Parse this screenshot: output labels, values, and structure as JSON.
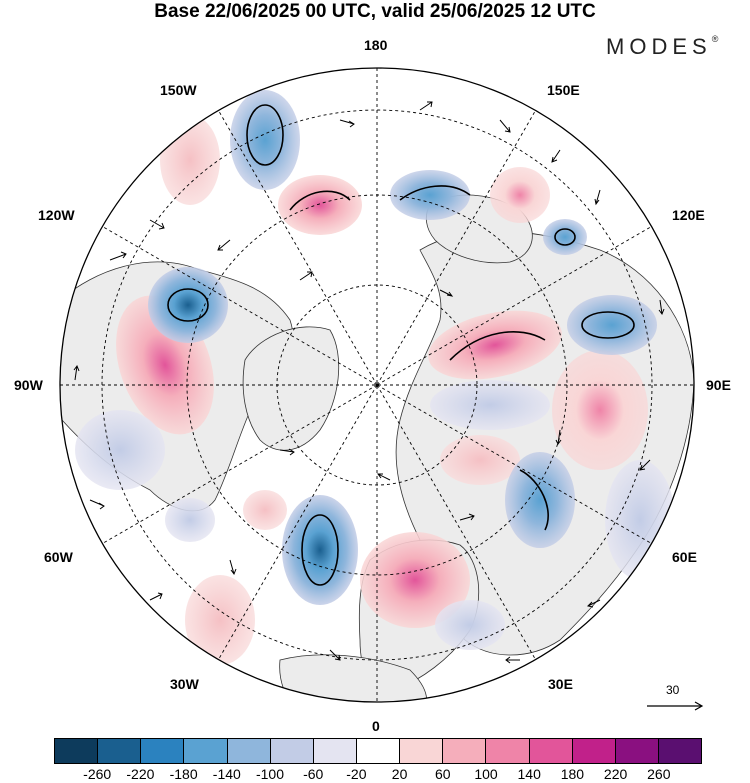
{
  "header": {
    "title": "Base 22/06/2025 00 UTC, valid 25/06/2025 12 UTC",
    "brand": "MODES",
    "brand_mark": "®"
  },
  "map": {
    "projection": "north-polar-stereographic",
    "longitude_labels": {
      "top": "180",
      "bottom": "0",
      "left": "90W",
      "right": "90E",
      "upper_left_1": "150W",
      "upper_left_2": "120W",
      "upper_right_1": "150E",
      "upper_right_2": "120E",
      "lower_left_1": "60W",
      "lower_left_2": "30W",
      "lower_right_1": "60E",
      "lower_right_2": "30E"
    },
    "reference_vector": {
      "label": "30"
    }
  },
  "colorbar": {
    "colors": [
      "#0d3b5c",
      "#1a5f8f",
      "#2b82bf",
      "#5aa2d2",
      "#8fb6dc",
      "#c2cce6",
      "#e4e4f1",
      "#ffffff",
      "#f9d6d6",
      "#f5aebb",
      "#ef84a8",
      "#e2559a",
      "#c1218a",
      "#8a1080",
      "#5a0f70"
    ],
    "ticks": [
      "-260",
      "-220",
      "-180",
      "-140",
      "-100",
      "-60",
      "-20",
      "20",
      "60",
      "100",
      "140",
      "180",
      "220",
      "260"
    ]
  }
}
